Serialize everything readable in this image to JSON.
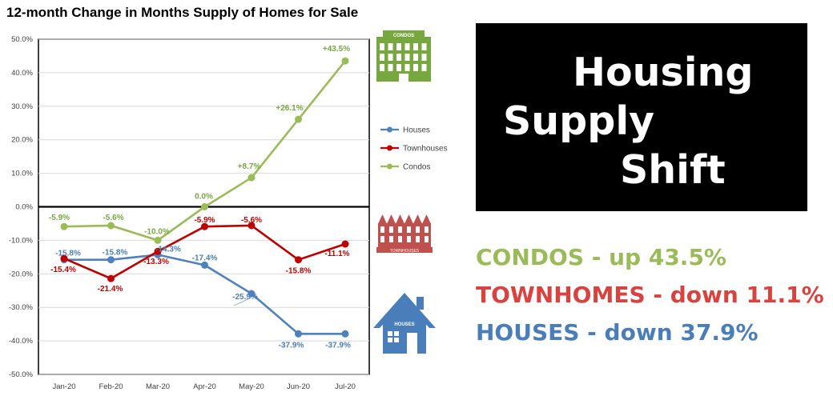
{
  "chart_data": {
    "type": "line",
    "title": "12-month Change in Months Supply of Homes for Sale",
    "categories": [
      "Jan-20",
      "Feb-20",
      "Mar-20",
      "Apr-20",
      "May-20",
      "Jun-20",
      "Jul-20"
    ],
    "ylim": [
      -50,
      50
    ],
    "yticks": [
      "50.0%",
      "40.0%",
      "30.0%",
      "20.0%",
      "10.0%",
      "0.0%",
      "-10.0%",
      "-20.0%",
      "-30.0%",
      "-40.0%",
      "-50.0%"
    ],
    "grid": true,
    "legend_position": "right",
    "series": [
      {
        "name": "Houses",
        "color": "#4f81bd",
        "values": [
          -15.8,
          -15.8,
          -14.3,
          -17.4,
          -25.9,
          -37.9,
          -37.9
        ],
        "labels": [
          "-15.8%",
          "-15.8%",
          "-14.3%",
          "-17.4%",
          "-25.9%",
          "-37.9%",
          "-37.9%"
        ]
      },
      {
        "name": "Townhouses",
        "color": "#c00000",
        "values": [
          -15.4,
          -21.4,
          -13.3,
          -5.9,
          -5.6,
          -15.8,
          -11.1
        ],
        "labels": [
          "-15.4%",
          "-21.4%",
          "-13.3%",
          "-5.9%",
          "-5.6%",
          "-15.8%",
          "-11.1%"
        ]
      },
      {
        "name": "Condos",
        "color": "#9bbb59",
        "values": [
          -5.9,
          -5.6,
          -10.0,
          0.0,
          8.7,
          26.1,
          43.5
        ],
        "labels": [
          "-5.9%",
          "-5.6%",
          "-10.0%",
          "0.0%",
          "+8.7%",
          "+26.1%",
          "+43.5%"
        ]
      }
    ]
  },
  "icons": {
    "condos": {
      "name": "condo-building-icon",
      "label": "CONDOS",
      "color": "#77a83f"
    },
    "townhouses": {
      "name": "townhouse-row-icon",
      "label": "TOWNHOUSES",
      "color": "#c0504d"
    },
    "houses": {
      "name": "house-icon",
      "label": "HOUSES",
      "color": "#4a7ebb"
    }
  },
  "headline": {
    "line1": "Housing",
    "line2": "Supply",
    "line3": "Shift"
  },
  "summary": {
    "condos": {
      "text": "CONDOS - up 43.5%",
      "color": "#9bbb59"
    },
    "townhomes": {
      "text": "TOWNHOMES - down 11.1%",
      "color": "#d9433f"
    },
    "houses": {
      "text": "HOUSES - down 37.9%",
      "color": "#4a7ebb"
    }
  }
}
